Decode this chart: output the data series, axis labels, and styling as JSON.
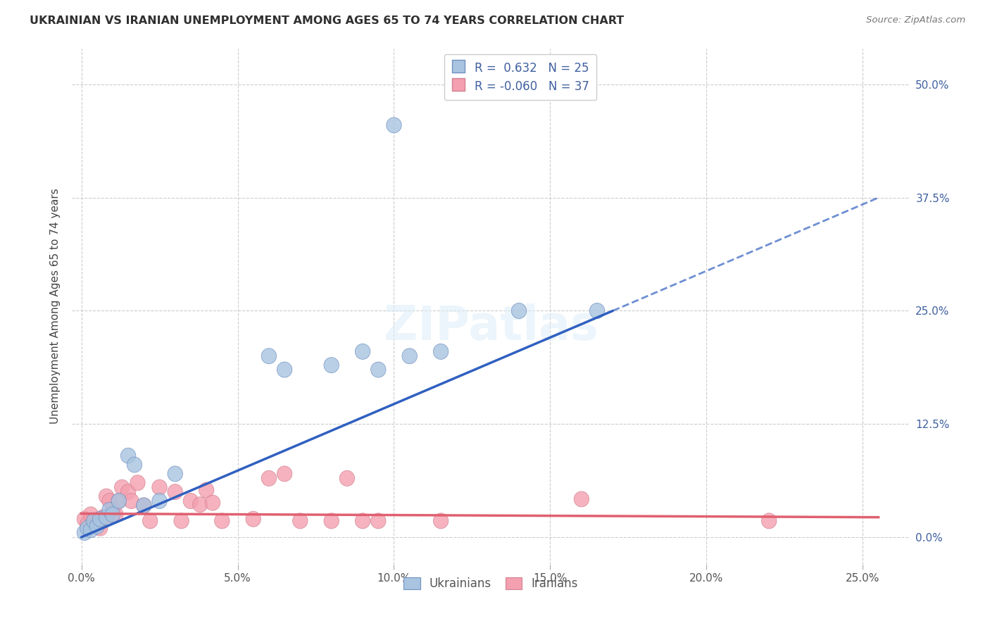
{
  "title": "UKRAINIAN VS IRANIAN UNEMPLOYMENT AMONG AGES 65 TO 74 YEARS CORRELATION CHART",
  "source": "Source: ZipAtlas.com",
  "xlabel_ticks": [
    "0.0%",
    "5.0%",
    "10.0%",
    "15.0%",
    "20.0%",
    "25.0%"
  ],
  "xlabel_vals": [
    0.0,
    0.05,
    0.1,
    0.15,
    0.2,
    0.25
  ],
  "ylabel_ticks": [
    "0.0%",
    "12.5%",
    "25.0%",
    "37.5%",
    "50.0%"
  ],
  "ylabel_vals": [
    0.0,
    0.125,
    0.25,
    0.375,
    0.5
  ],
  "ylabel_label": "Unemployment Among Ages 65 to 74 years",
  "xlim": [
    -0.003,
    0.265
  ],
  "ylim": [
    -0.03,
    0.54
  ],
  "legend_r_ukr": "0.632",
  "legend_n_ukr": "25",
  "legend_r_ira": "-0.060",
  "legend_n_ira": "37",
  "ukr_color": "#a8c4e0",
  "ira_color": "#f4a0b0",
  "ukr_line_color": "#3060c0",
  "ira_line_color": "#e06070",
  "watermark": "ZIPatlas",
  "title_color": "#303030",
  "axis_label_color": "#4060a0",
  "ukr_scatter": [
    [
      0.001,
      0.005
    ],
    [
      0.002,
      0.01
    ],
    [
      0.003,
      0.008
    ],
    [
      0.004,
      0.018
    ],
    [
      0.005,
      0.012
    ],
    [
      0.006,
      0.02
    ],
    [
      0.008,
      0.022
    ],
    [
      0.009,
      0.03
    ],
    [
      0.01,
      0.025
    ],
    [
      0.012,
      0.04
    ],
    [
      0.015,
      0.09
    ],
    [
      0.017,
      0.08
    ],
    [
      0.02,
      0.035
    ],
    [
      0.025,
      0.04
    ],
    [
      0.03,
      0.07
    ],
    [
      0.06,
      0.2
    ],
    [
      0.065,
      0.185
    ],
    [
      0.08,
      0.19
    ],
    [
      0.09,
      0.205
    ],
    [
      0.095,
      0.185
    ],
    [
      0.105,
      0.2
    ],
    [
      0.115,
      0.205
    ],
    [
      0.14,
      0.25
    ],
    [
      0.165,
      0.25
    ],
    [
      0.1,
      0.455
    ]
  ],
  "ira_scatter": [
    [
      0.001,
      0.02
    ],
    [
      0.002,
      0.015
    ],
    [
      0.003,
      0.025
    ],
    [
      0.004,
      0.018
    ],
    [
      0.005,
      0.015
    ],
    [
      0.006,
      0.01
    ],
    [
      0.007,
      0.022
    ],
    [
      0.008,
      0.045
    ],
    [
      0.009,
      0.04
    ],
    [
      0.01,
      0.03
    ],
    [
      0.011,
      0.025
    ],
    [
      0.012,
      0.04
    ],
    [
      0.013,
      0.055
    ],
    [
      0.015,
      0.05
    ],
    [
      0.016,
      0.04
    ],
    [
      0.018,
      0.06
    ],
    [
      0.02,
      0.035
    ],
    [
      0.022,
      0.018
    ],
    [
      0.025,
      0.055
    ],
    [
      0.03,
      0.05
    ],
    [
      0.032,
      0.018
    ],
    [
      0.035,
      0.04
    ],
    [
      0.038,
      0.036
    ],
    [
      0.04,
      0.052
    ],
    [
      0.042,
      0.038
    ],
    [
      0.045,
      0.018
    ],
    [
      0.055,
      0.02
    ],
    [
      0.06,
      0.065
    ],
    [
      0.065,
      0.07
    ],
    [
      0.07,
      0.018
    ],
    [
      0.08,
      0.018
    ],
    [
      0.085,
      0.065
    ],
    [
      0.09,
      0.018
    ],
    [
      0.095,
      0.018
    ],
    [
      0.115,
      0.018
    ],
    [
      0.16,
      0.042
    ],
    [
      0.22,
      0.018
    ]
  ],
  "ukr_line_solid": [
    [
      0.0,
      0.0
    ],
    [
      0.17,
      0.25
    ]
  ],
  "ukr_line_dashed": [
    [
      0.17,
      0.25
    ],
    [
      0.255,
      0.375
    ]
  ],
  "ira_line": [
    [
      0.0,
      0.026
    ],
    [
      0.255,
      0.022
    ]
  ]
}
